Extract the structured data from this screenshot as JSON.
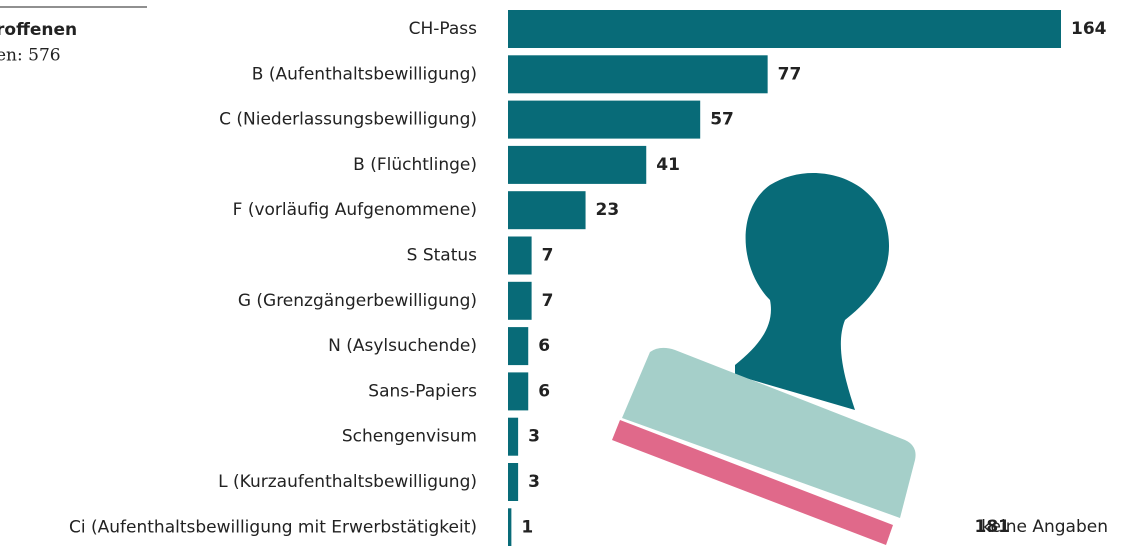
{
  "chart_data": {
    "type": "bar",
    "title": "roffenen",
    "subtitle": "en: 576",
    "categories": [
      "CH-Pass",
      "B (Aufenthaltsbewilligung)",
      "C (Niederlassungsbewilligung)",
      "B (Flüchtlinge)",
      "F (vorläufig Aufgenommene)",
      "S Status",
      "G (Grenzgängerbewilligung)",
      "N (Asylsuchende)",
      "Sans-Papiers",
      "Schengenvisum",
      "L (Kurzaufenthaltsbewilligung)",
      "Ci (Aufenthaltsbewilligung mit Erwerbstätigkeit)"
    ],
    "values": [
      164,
      77,
      57,
      41,
      23,
      7,
      7,
      6,
      6,
      3,
      3,
      1
    ],
    "color": "#086b78",
    "unknown_count": 181,
    "unknown_label": "keine Angaben"
  }
}
